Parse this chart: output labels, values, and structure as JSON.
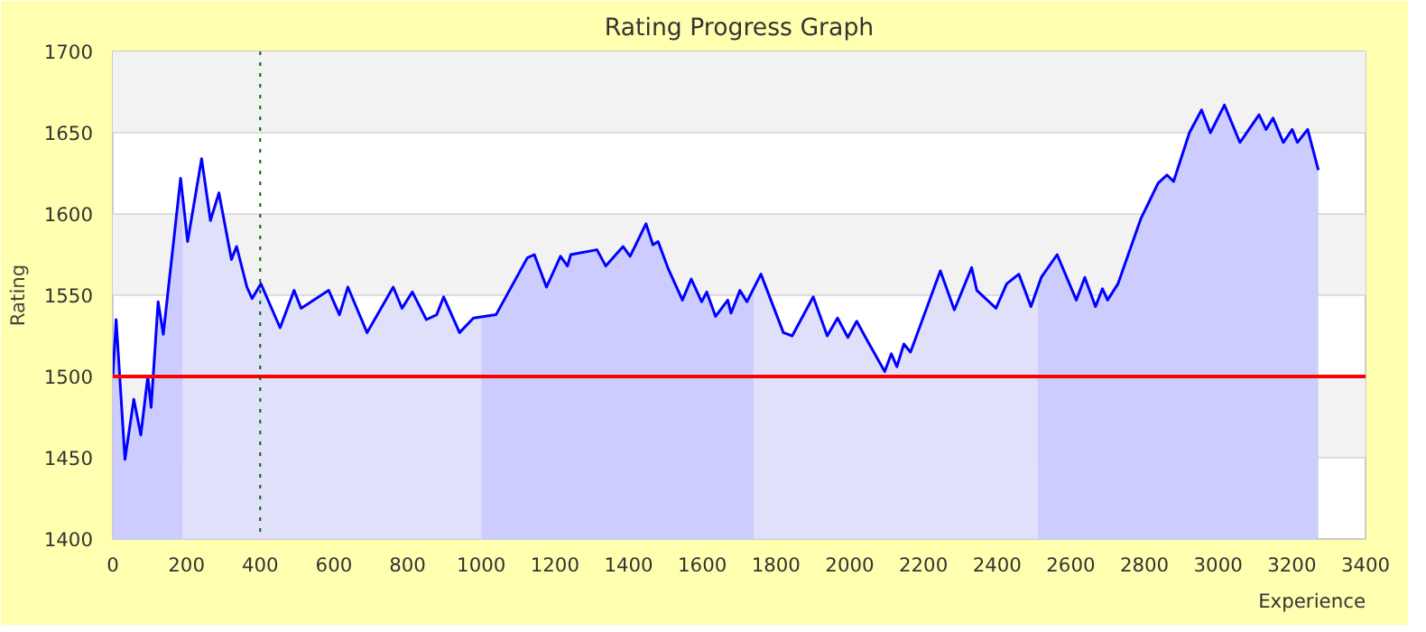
{
  "chart_data": {
    "type": "line",
    "title": "Rating Progress Graph",
    "xlabel": "Experience",
    "ylabel": "Rating",
    "xlim": [
      0,
      3400
    ],
    "xticks": [
      0,
      200,
      400,
      600,
      800,
      1000,
      1200,
      1400,
      1600,
      1800,
      2000,
      2200,
      2400,
      2600,
      2800,
      3000,
      3200,
      3400
    ],
    "ylim": [
      1400,
      1700
    ],
    "yticks": [
      1400,
      1450,
      1500,
      1550,
      1600,
      1650,
      1700
    ],
    "grid": "y",
    "ref_lines": [
      {
        "axis": "y",
        "value": 1500,
        "label": null,
        "color": "#ff0000",
        "line_style": "solid"
      },
      {
        "axis": "x",
        "value": 400,
        "label": null,
        "color": "#006600",
        "line_style": "dotted"
      }
    ],
    "series": [
      {
        "type": "area",
        "color": "#ccccff",
        "x": [
          0,
          9,
          33,
          57,
          76,
          95,
          104,
          123,
          137,
          184,
          190
        ],
        "values": [
          1500,
          1535,
          1449,
          1486,
          1464,
          1500,
          1481,
          1546,
          1526,
          1622,
          1610
        ]
      },
      {
        "type": "area",
        "color": "#e0e0fb",
        "x": [
          190,
          203,
          241,
          265,
          288,
          322,
          336,
          364,
          378,
          402,
          454,
          492,
          511,
          586,
          615,
          638,
          690,
          761,
          785,
          813,
          851,
          879,
          898,
          941,
          979,
          1000
        ],
        "values": [
          1610,
          1583,
          1634,
          1596,
          1613,
          1572,
          1580,
          1555,
          1548,
          1557,
          1530,
          1553,
          1542,
          1553,
          1538,
          1555,
          1527,
          1555,
          1542,
          1552,
          1535,
          1538,
          1549,
          1527,
          1536,
          1537
        ]
      },
      {
        "type": "area",
        "color": "#ccccff",
        "x": [
          1000,
          1040,
          1125,
          1144,
          1177,
          1215,
          1234,
          1243,
          1314,
          1338,
          1385,
          1404,
          1447,
          1466,
          1480,
          1508,
          1546,
          1570,
          1598,
          1612,
          1636,
          1669,
          1678,
          1702,
          1721,
          1740
        ],
        "values": [
          1537,
          1538,
          1573,
          1575,
          1555,
          1574,
          1568,
          1575,
          1578,
          1568,
          1580,
          1574,
          1594,
          1581,
          1583,
          1566,
          1547,
          1560,
          1546,
          1552,
          1537,
          1547,
          1539,
          1553,
          1546,
          1555
        ]
      },
      {
        "type": "area",
        "color": "#e0e0fb",
        "x": [
          1740,
          1759,
          1820,
          1844,
          1901,
          1939,
          1967,
          1995,
          2019,
          2043,
          2095,
          2113,
          2128,
          2147,
          2165,
          2246,
          2284,
          2331,
          2345,
          2397,
          2426,
          2459,
          2492,
          2510
        ],
        "values": [
          1555,
          1563,
          1527,
          1525,
          1549,
          1525,
          1536,
          1524,
          1534,
          1524,
          1503,
          1514,
          1506,
          1520,
          1515,
          1565,
          1541,
          1567,
          1553,
          1542,
          1557,
          1563,
          1543,
          1555
        ]
      },
      {
        "type": "area",
        "color": "#ccccff",
        "x": [
          2510,
          2520,
          2563,
          2615,
          2638,
          2667,
          2686,
          2700,
          2728,
          2790,
          2837,
          2861,
          2879,
          2922,
          2955,
          2979,
          3017,
          3059,
          3111,
          3130,
          3149,
          3177,
          3201,
          3215,
          3243,
          3272
        ],
        "values": [
          1555,
          1561,
          1575,
          1547,
          1561,
          1543,
          1554,
          1547,
          1557,
          1597,
          1619,
          1624,
          1620,
          1650,
          1664,
          1650,
          1667,
          1644,
          1661,
          1652,
          1659,
          1644,
          1652,
          1644,
          1652,
          1627
        ]
      },
      {
        "color": "#0000ff",
        "x": [
          0,
          9,
          33,
          57,
          76,
          95,
          104,
          123,
          137,
          184,
          203,
          241,
          265,
          288,
          322,
          336,
          364,
          378,
          402,
          454,
          492,
          511,
          586,
          615,
          638,
          690,
          761,
          785,
          813,
          851,
          879,
          898,
          941,
          979,
          1040,
          1125,
          1144,
          1177,
          1215,
          1234,
          1243,
          1314,
          1338,
          1385,
          1404,
          1447,
          1466,
          1480,
          1508,
          1546,
          1570,
          1598,
          1612,
          1636,
          1669,
          1678,
          1702,
          1721,
          1759,
          1820,
          1844,
          1901,
          1939,
          1967,
          1995,
          2019,
          2043,
          2095,
          2113,
          2128,
          2147,
          2165,
          2246,
          2284,
          2331,
          2345,
          2397,
          2426,
          2459,
          2492,
          2520,
          2563,
          2615,
          2638,
          2667,
          2686,
          2700,
          2728,
          2790,
          2837,
          2861,
          2879,
          2922,
          2955,
          2979,
          3017,
          3059,
          3111,
          3130,
          3149,
          3177,
          3201,
          3215,
          3243,
          3272
        ],
        "values": [
          1500,
          1535,
          1449,
          1486,
          1464,
          1500,
          1481,
          1546,
          1526,
          1622,
          1583,
          1634,
          1596,
          1613,
          1572,
          1580,
          1555,
          1548,
          1557,
          1530,
          1553,
          1542,
          1553,
          1538,
          1555,
          1527,
          1555,
          1542,
          1552,
          1535,
          1538,
          1549,
          1527,
          1536,
          1538,
          1573,
          1575,
          1555,
          1574,
          1568,
          1575,
          1578,
          1568,
          1580,
          1574,
          1594,
          1581,
          1583,
          1566,
          1547,
          1560,
          1546,
          1552,
          1537,
          1547,
          1539,
          1553,
          1546,
          1563,
          1527,
          1525,
          1549,
          1525,
          1536,
          1524,
          1534,
          1524,
          1503,
          1514,
          1506,
          1520,
          1515,
          1565,
          1541,
          1567,
          1553,
          1542,
          1557,
          1563,
          1543,
          1561,
          1575,
          1547,
          1561,
          1543,
          1554,
          1547,
          1557,
          1597,
          1619,
          1624,
          1620,
          1650,
          1664,
          1650,
          1667,
          1644,
          1661,
          1652,
          1659,
          1644,
          1652,
          1644,
          1652,
          1627
        ]
      }
    ]
  }
}
